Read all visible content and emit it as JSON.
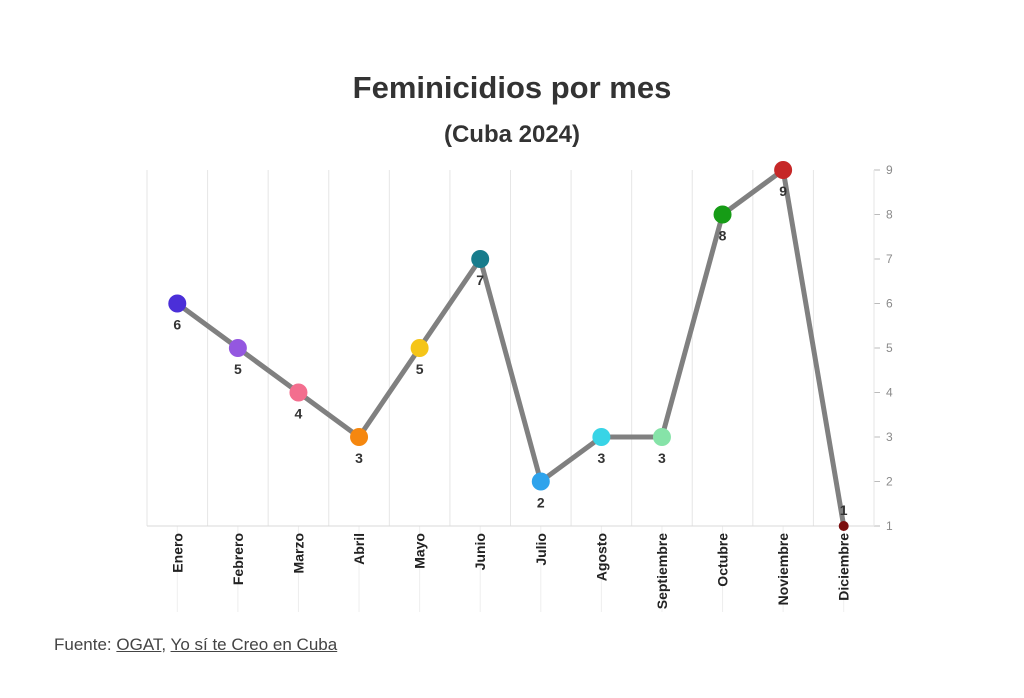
{
  "chart_data": {
    "type": "line",
    "title": "Feminicidios por mes",
    "subtitle": "(Cuba 2024)",
    "categories": [
      "Enero",
      "Febrero",
      "Marzo",
      "Abril",
      "Mayo",
      "Junio",
      "Julio",
      "Agosto",
      "Septiembre",
      "Octubre",
      "Noviembre",
      "Diciembre"
    ],
    "values": [
      6,
      5,
      4,
      3,
      5,
      7,
      2,
      3,
      3,
      8,
      9,
      1
    ],
    "point_colors": [
      "#4b2fd8",
      "#9457e0",
      "#f36e8e",
      "#f5870f",
      "#f5c518",
      "#177c8c",
      "#2ea3ec",
      "#38d4e6",
      "#86e3a8",
      "#169c16",
      "#c62828",
      "#7a0e0e"
    ],
    "line_color": "#808080",
    "ylim": [
      1,
      9
    ],
    "yticks": [
      "1",
      "2",
      "3",
      "4",
      "5",
      "6",
      "7",
      "8",
      "9"
    ],
    "y_axis_position": "right",
    "grid": "vertical",
    "xlabel": "",
    "ylabel": ""
  },
  "footer": {
    "prefix": "Fuente: ",
    "link1": "OGAT",
    "separator": ", ",
    "link2": "Yo sí te Creo en Cuba"
  }
}
